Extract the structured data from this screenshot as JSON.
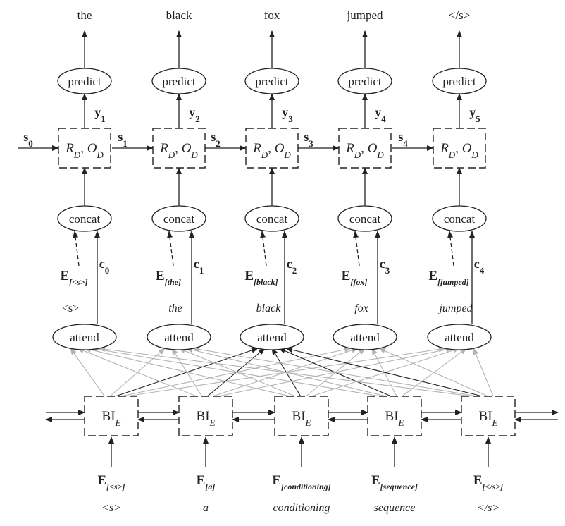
{
  "columns": [
    {
      "output_word": "the",
      "y_label": "y",
      "y_sub": "1",
      "s_label": "s",
      "s_sub": "0",
      "c_label": "c",
      "c_sub": "0",
      "e_prev_sub": "[<s>]",
      "prev_word": "<s>"
    },
    {
      "output_word": "black",
      "y_label": "y",
      "y_sub": "2",
      "s_label": "s",
      "s_sub": "1",
      "c_label": "c",
      "c_sub": "1",
      "e_prev_sub": "[the]",
      "prev_word": "the"
    },
    {
      "output_word": "fox",
      "y_label": "y",
      "y_sub": "3",
      "s_label": "s",
      "s_sub": "2",
      "c_label": "c",
      "c_sub": "2",
      "e_prev_sub": "[black]",
      "prev_word": "black"
    },
    {
      "output_word": "jumped",
      "y_label": "y",
      "y_sub": "4",
      "s_label": "s",
      "s_sub": "3",
      "c_label": "c",
      "c_sub": "3",
      "e_prev_sub": "[fox]",
      "prev_word": "fox"
    },
    {
      "output_word": "</s>",
      "y_label": "y",
      "y_sub": "5",
      "s_label": "s",
      "s_sub": "4",
      "c_label": "c",
      "c_sub": "4",
      "e_prev_sub": "[jumped]",
      "prev_word": "jumped"
    }
  ],
  "node_labels": {
    "predict": "predict",
    "decoder_main": "R",
    "decoder_main_sub": "D",
    "decoder_sep": ", ",
    "decoder_second": "O",
    "decoder_second_sub": "D",
    "concat": "concat",
    "attend": "attend",
    "encoder_main": "BI",
    "encoder_sub": "E",
    "embedding": "E"
  },
  "encoder_inputs": [
    {
      "e_sub": "[<s>]",
      "word": "<s>"
    },
    {
      "e_sub": "[a]",
      "word": "a"
    },
    {
      "e_sub": "[conditioning]",
      "word": "conditioning"
    },
    {
      "e_sub": "[sequence]",
      "word": "sequence"
    },
    {
      "e_sub": "[</s>]",
      "word": "</s>"
    }
  ],
  "colors": {
    "dark": "#222222",
    "gray": "#b3b3b3"
  }
}
